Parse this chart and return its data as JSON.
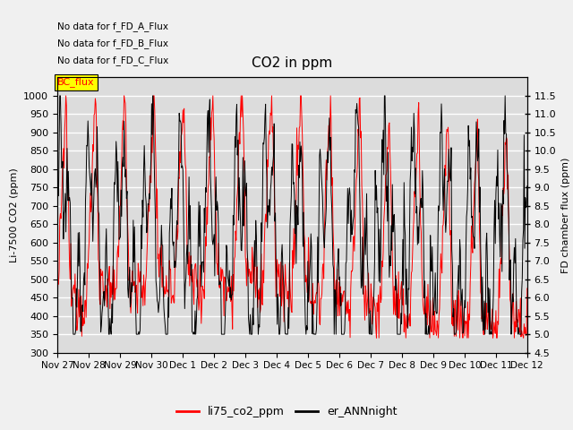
{
  "title": "CO2 in ppm",
  "ylabel_left": "Li-7500 CO2 (ppm)",
  "ylabel_right": "FD chamber flux (ppm)",
  "ylim_left": [
    300,
    1050
  ],
  "ylim_right": [
    4.5,
    12.0
  ],
  "yticks_left": [
    300,
    350,
    400,
    450,
    500,
    550,
    600,
    650,
    700,
    750,
    800,
    850,
    900,
    950,
    1000
  ],
  "yticks_right": [
    4.5,
    5.0,
    5.5,
    6.0,
    6.5,
    7.0,
    7.5,
    8.0,
    8.5,
    9.0,
    9.5,
    10.0,
    10.5,
    11.0,
    11.5
  ],
  "xtick_labels": [
    "Nov 27",
    "Nov 28",
    "Nov 29",
    "Nov 30",
    "Dec 1",
    "Dec 2",
    "Dec 3",
    "Dec 4",
    "Dec 5",
    "Dec 6",
    "Dec 7",
    "Dec 8",
    "Dec 9",
    "Dec 10",
    "Dec 11",
    "Dec 12"
  ],
  "no_data_texts": [
    "No data for f_FD_A_Flux",
    "No data for f_FD_B_Flux",
    "No data for f_FD_C_Flux"
  ],
  "bc_flux_label": "BC_flux",
  "legend_labels": [
    "li75_co2_ppm",
    "er_ANNnight"
  ],
  "line_colors": [
    "#ff0000",
    "#000000"
  ],
  "plot_bg_color": "#dcdcdc",
  "fig_bg_color": "#f0f0f0",
  "grid_color": "#ffffff",
  "figsize": [
    6.4,
    4.8
  ],
  "dpi": 100
}
